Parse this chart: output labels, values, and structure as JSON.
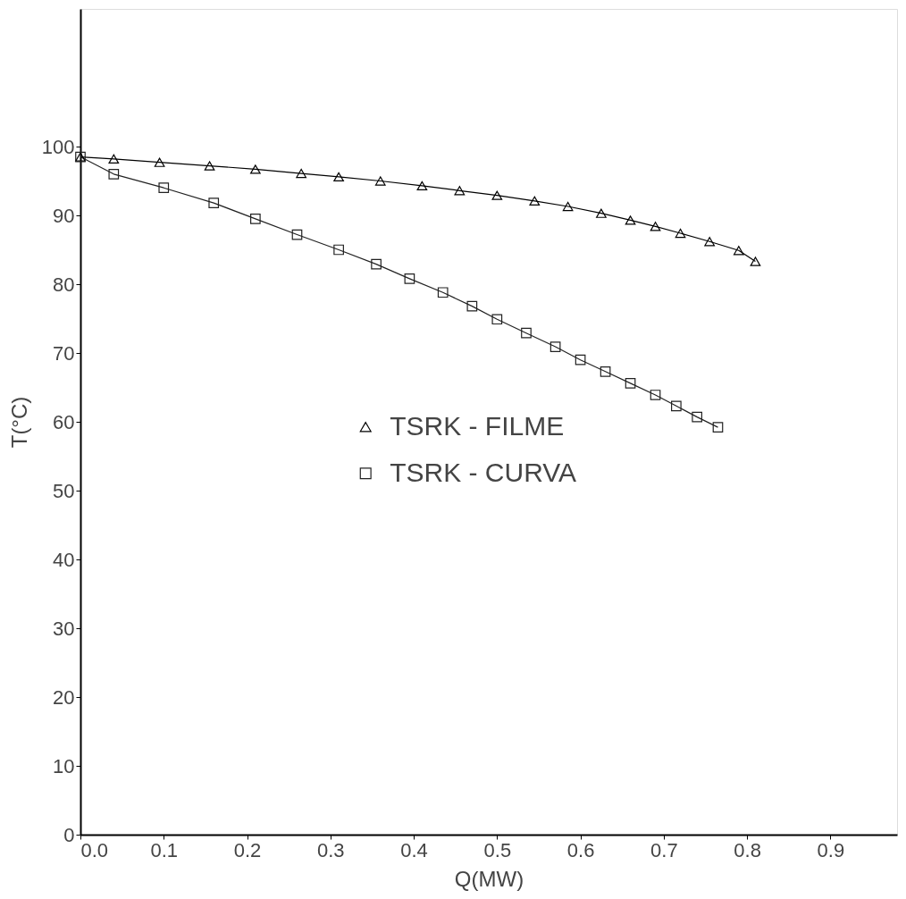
{
  "chart_data": {
    "type": "line",
    "xlabel": "Q(MW)",
    "ylabel": "T(°C)",
    "xlim": [
      0,
      0.98
    ],
    "xticks": [
      {
        "value": 0,
        "label": "0.0"
      },
      0.1,
      0.2,
      0.3,
      0.4,
      0.5,
      0.6,
      0.7,
      0.8,
      0.9
    ],
    "ylim": [
      0,
      120
    ],
    "yticks": [
      0,
      10,
      20,
      30,
      40,
      50,
      60,
      70,
      80,
      90,
      100
    ],
    "grid": false,
    "legend": "center",
    "line_style": "solid",
    "series": [
      {
        "name": "TSRK - FILME",
        "color": "#000000",
        "marker": "triangle",
        "x": [
          0,
          0.04,
          0.095,
          0.155,
          0.21,
          0.265,
          0.31,
          0.36,
          0.41,
          0.455,
          0.5,
          0.545,
          0.585,
          0.625,
          0.66,
          0.69,
          0.72,
          0.755,
          0.79,
          0.81
        ],
        "values": [
          98.5,
          98.2,
          97.7,
          97.2,
          96.7,
          96.1,
          95.6,
          95,
          94.3,
          93.6,
          92.9,
          92.1,
          91.3,
          90.3,
          89.3,
          88.4,
          87.4,
          86.2,
          84.9,
          83.3
        ]
      },
      {
        "name": "TSRK - CURVA",
        "color": "#222222",
        "marker": "square",
        "x": [
          0,
          0.04,
          0.1,
          0.16,
          0.21,
          0.26,
          0.31,
          0.355,
          0.395,
          0.435,
          0.47,
          0.5,
          0.535,
          0.57,
          0.6,
          0.63,
          0.66,
          0.69,
          0.715,
          0.74,
          0.765
        ],
        "values": [
          98.5,
          96,
          94,
          91.8,
          89.5,
          87.2,
          85,
          82.9,
          80.8,
          78.8,
          76.8,
          74.9,
          72.9,
          70.9,
          69,
          67.3,
          65.6,
          63.9,
          62.3,
          60.7,
          59.2
        ]
      }
    ]
  }
}
